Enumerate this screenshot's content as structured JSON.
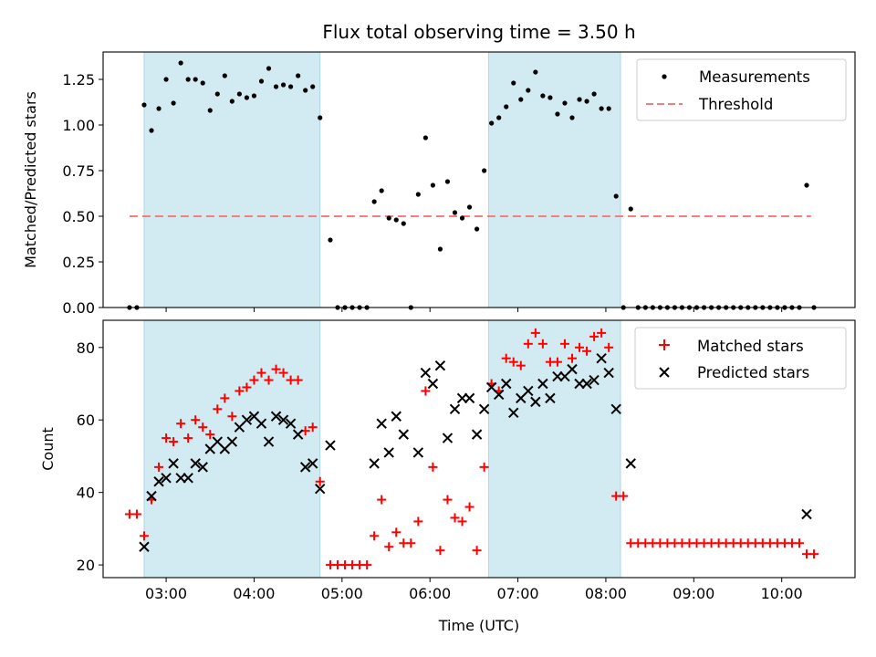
{
  "chart_data": [
    {
      "type": "scatter",
      "title": "Flux total observing time = 3.50 h",
      "xlabel": "",
      "ylabel": "Matched/Predicted stars",
      "xlim": [
        "02:17",
        "10:50"
      ],
      "ylim": [
        0,
        1.4
      ],
      "yticks": [
        "0.00",
        "0.25",
        "0.50",
        "0.75",
        "1.00",
        "1.25"
      ],
      "shaded_intervals": [
        [
          "02:45",
          "04:45"
        ],
        [
          "06:40",
          "08:10"
        ]
      ],
      "shade_color": "#add8e6",
      "legend_position": "top-right",
      "series": [
        {
          "name": "Measurements",
          "marker": "dot",
          "color": "#000000",
          "points": [
            [
              "02:35",
              0
            ],
            [
              "02:40",
              0
            ],
            [
              "02:45",
              1.11
            ],
            [
              "02:50",
              0.97
            ],
            [
              "02:55",
              1.09
            ],
            [
              "03:00",
              1.25
            ],
            [
              "03:05",
              1.12
            ],
            [
              "03:10",
              1.34
            ],
            [
              "03:15",
              1.25
            ],
            [
              "03:20",
              1.25
            ],
            [
              "03:25",
              1.23
            ],
            [
              "03:30",
              1.08
            ],
            [
              "03:35",
              1.17
            ],
            [
              "03:40",
              1.27
            ],
            [
              "03:45",
              1.13
            ],
            [
              "03:50",
              1.17
            ],
            [
              "03:55",
              1.15
            ],
            [
              "04:00",
              1.16
            ],
            [
              "04:05",
              1.24
            ],
            [
              "04:10",
              1.31
            ],
            [
              "04:15",
              1.21
            ],
            [
              "04:20",
              1.22
            ],
            [
              "04:25",
              1.21
            ],
            [
              "04:30",
              1.27
            ],
            [
              "04:35",
              1.19
            ],
            [
              "04:40",
              1.21
            ],
            [
              "04:45",
              1.04
            ],
            [
              "04:52",
              0.37
            ],
            [
              "04:57",
              0
            ],
            [
              "05:02",
              0
            ],
            [
              "05:07",
              0
            ],
            [
              "05:12",
              0
            ],
            [
              "05:17",
              0
            ],
            [
              "05:22",
              0.58
            ],
            [
              "05:27",
              0.64
            ],
            [
              "05:32",
              0.49
            ],
            [
              "05:37",
              0.48
            ],
            [
              "05:42",
              0.46
            ],
            [
              "05:47",
              0
            ],
            [
              "05:52",
              0.62
            ],
            [
              "05:57",
              0.93
            ],
            [
              "06:02",
              0.67
            ],
            [
              "06:07",
              0.32
            ],
            [
              "06:12",
              0.69
            ],
            [
              "06:17",
              0.52
            ],
            [
              "06:22",
              0.49
            ],
            [
              "06:27",
              0.55
            ],
            [
              "06:32",
              0.43
            ],
            [
              "06:37",
              0.75
            ],
            [
              "06:42",
              1.01
            ],
            [
              "06:47",
              1.04
            ],
            [
              "06:52",
              1.1
            ],
            [
              "06:57",
              1.23
            ],
            [
              "07:02",
              1.14
            ],
            [
              "07:07",
              1.19
            ],
            [
              "07:12",
              1.29
            ],
            [
              "07:17",
              1.16
            ],
            [
              "07:22",
              1.15
            ],
            [
              "07:27",
              1.06
            ],
            [
              "07:32",
              1.12
            ],
            [
              "07:37",
              1.04
            ],
            [
              "07:42",
              1.14
            ],
            [
              "07:47",
              1.13
            ],
            [
              "07:52",
              1.17
            ],
            [
              "07:57",
              1.09
            ],
            [
              "08:02",
              1.09
            ],
            [
              "08:07",
              0.61
            ],
            [
              "08:12",
              0
            ],
            [
              "08:17",
              0.54
            ],
            [
              "08:22",
              0
            ],
            [
              "08:27",
              0
            ],
            [
              "08:32",
              0
            ],
            [
              "08:37",
              0
            ],
            [
              "08:42",
              0
            ],
            [
              "08:47",
              0
            ],
            [
              "08:52",
              0
            ],
            [
              "08:57",
              0
            ],
            [
              "09:02",
              0
            ],
            [
              "09:07",
              0
            ],
            [
              "09:12",
              0
            ],
            [
              "09:17",
              0
            ],
            [
              "09:22",
              0
            ],
            [
              "09:27",
              0
            ],
            [
              "09:32",
              0
            ],
            [
              "09:37",
              0
            ],
            [
              "09:42",
              0
            ],
            [
              "09:47",
              0
            ],
            [
              "09:52",
              0
            ],
            [
              "09:57",
              0
            ],
            [
              "10:02",
              0
            ],
            [
              "10:07",
              0
            ],
            [
              "10:12",
              0
            ],
            [
              "10:17",
              0.67
            ],
            [
              "10:22",
              0
            ]
          ]
        },
        {
          "name": "Threshold",
          "marker": "dashed-line",
          "color": "#f08080",
          "points": [
            [
              "02:35",
              0.5
            ],
            [
              "10:20",
              0.5
            ]
          ]
        }
      ]
    },
    {
      "type": "scatter",
      "title": "",
      "xlabel": "Time (UTC)",
      "ylabel": "Count",
      "xlim": [
        "02:17",
        "10:50"
      ],
      "ylim": [
        16.5,
        87.5
      ],
      "yticks": [
        "20",
        "40",
        "60",
        "80"
      ],
      "xticks": [
        "03:00",
        "04:00",
        "05:00",
        "06:00",
        "07:00",
        "08:00",
        "09:00",
        "10:00"
      ],
      "shaded_intervals": [
        [
          "02:45",
          "04:45"
        ],
        [
          "06:40",
          "08:10"
        ]
      ],
      "shade_color": "#add8e6",
      "legend_position": "top-right",
      "series": [
        {
          "name": "Matched stars",
          "marker": "plus",
          "color": "#ff0000",
          "points": [
            [
              "02:35",
              34
            ],
            [
              "02:40",
              34
            ],
            [
              "02:45",
              28
            ],
            [
              "02:50",
              38
            ],
            [
              "02:55",
              47
            ],
            [
              "03:00",
              55
            ],
            [
              "03:05",
              54
            ],
            [
              "03:10",
              59
            ],
            [
              "03:15",
              55
            ],
            [
              "03:20",
              60
            ],
            [
              "03:25",
              58
            ],
            [
              "03:30",
              56
            ],
            [
              "03:35",
              63
            ],
            [
              "03:40",
              66
            ],
            [
              "03:45",
              61
            ],
            [
              "03:50",
              68
            ],
            [
              "03:55",
              69
            ],
            [
              "04:00",
              71
            ],
            [
              "04:05",
              73
            ],
            [
              "04:10",
              71
            ],
            [
              "04:15",
              74
            ],
            [
              "04:20",
              73
            ],
            [
              "04:25",
              71
            ],
            [
              "04:30",
              71
            ],
            [
              "04:35",
              57
            ],
            [
              "04:40",
              58
            ],
            [
              "04:45",
              43
            ],
            [
              "04:52",
              20
            ],
            [
              "04:57",
              20
            ],
            [
              "05:02",
              20
            ],
            [
              "05:07",
              20
            ],
            [
              "05:12",
              20
            ],
            [
              "05:17",
              20
            ],
            [
              "05:22",
              28
            ],
            [
              "05:27",
              38
            ],
            [
              "05:32",
              25
            ],
            [
              "05:37",
              29
            ],
            [
              "05:42",
              26
            ],
            [
              "05:47",
              26
            ],
            [
              "05:52",
              32
            ],
            [
              "05:57",
              68
            ],
            [
              "06:02",
              47
            ],
            [
              "06:07",
              24
            ],
            [
              "06:12",
              38
            ],
            [
              "06:17",
              33
            ],
            [
              "06:22",
              32
            ],
            [
              "06:27",
              36
            ],
            [
              "06:32",
              24
            ],
            [
              "06:37",
              47
            ],
            [
              "06:42",
              70
            ],
            [
              "06:47",
              68
            ],
            [
              "06:52",
              77
            ],
            [
              "06:57",
              76
            ],
            [
              "07:02",
              75
            ],
            [
              "07:07",
              81
            ],
            [
              "07:12",
              84
            ],
            [
              "07:17",
              81
            ],
            [
              "07:22",
              76
            ],
            [
              "07:27",
              76
            ],
            [
              "07:32",
              81
            ],
            [
              "07:37",
              77
            ],
            [
              "07:42",
              80
            ],
            [
              "07:47",
              79
            ],
            [
              "07:52",
              83
            ],
            [
              "07:57",
              84
            ],
            [
              "08:02",
              80
            ],
            [
              "08:07",
              39
            ],
            [
              "08:12",
              39
            ],
            [
              "08:17",
              26
            ],
            [
              "08:22",
              26
            ],
            [
              "08:27",
              26
            ],
            [
              "08:32",
              26
            ],
            [
              "08:37",
              26
            ],
            [
              "08:42",
              26
            ],
            [
              "08:47",
              26
            ],
            [
              "08:52",
              26
            ],
            [
              "08:57",
              26
            ],
            [
              "09:02",
              26
            ],
            [
              "09:07",
              26
            ],
            [
              "09:12",
              26
            ],
            [
              "09:17",
              26
            ],
            [
              "09:22",
              26
            ],
            [
              "09:27",
              26
            ],
            [
              "09:32",
              26
            ],
            [
              "09:37",
              26
            ],
            [
              "09:42",
              26
            ],
            [
              "09:47",
              26
            ],
            [
              "09:52",
              26
            ],
            [
              "09:57",
              26
            ],
            [
              "10:02",
              26
            ],
            [
              "10:07",
              26
            ],
            [
              "10:12",
              26
            ],
            [
              "10:17",
              23
            ],
            [
              "10:22",
              23
            ]
          ]
        },
        {
          "name": "Predicted stars",
          "marker": "x",
          "color": "#000000",
          "points": [
            [
              "02:45",
              25
            ],
            [
              "02:50",
              39
            ],
            [
              "02:55",
              43
            ],
            [
              "03:00",
              44
            ],
            [
              "03:05",
              48
            ],
            [
              "03:10",
              44
            ],
            [
              "03:15",
              44
            ],
            [
              "03:20",
              48
            ],
            [
              "03:25",
              47
            ],
            [
              "03:30",
              52
            ],
            [
              "03:35",
              54
            ],
            [
              "03:40",
              52
            ],
            [
              "03:45",
              54
            ],
            [
              "03:50",
              58
            ],
            [
              "03:55",
              60
            ],
            [
              "04:00",
              61
            ],
            [
              "04:05",
              59
            ],
            [
              "04:10",
              54
            ],
            [
              "04:15",
              61
            ],
            [
              "04:20",
              60
            ],
            [
              "04:25",
              59
            ],
            [
              "04:30",
              56
            ],
            [
              "04:35",
              47
            ],
            [
              "04:40",
              48
            ],
            [
              "04:45",
              41
            ],
            [
              "04:52",
              53
            ],
            [
              "05:22",
              48
            ],
            [
              "05:27",
              59
            ],
            [
              "05:32",
              51
            ],
            [
              "05:37",
              61
            ],
            [
              "05:42",
              56
            ],
            [
              "05:52",
              51
            ],
            [
              "05:57",
              73
            ],
            [
              "06:02",
              70
            ],
            [
              "06:07",
              75
            ],
            [
              "06:12",
              55
            ],
            [
              "06:17",
              63
            ],
            [
              "06:22",
              66
            ],
            [
              "06:27",
              66
            ],
            [
              "06:32",
              56
            ],
            [
              "06:37",
              63
            ],
            [
              "06:42",
              69
            ],
            [
              "06:47",
              67
            ],
            [
              "06:52",
              70
            ],
            [
              "06:57",
              62
            ],
            [
              "07:02",
              66
            ],
            [
              "07:07",
              68
            ],
            [
              "07:12",
              65
            ],
            [
              "07:17",
              70
            ],
            [
              "07:22",
              66
            ],
            [
              "07:27",
              72
            ],
            [
              "07:32",
              72
            ],
            [
              "07:37",
              74
            ],
            [
              "07:42",
              70
            ],
            [
              "07:47",
              70
            ],
            [
              "07:52",
              71
            ],
            [
              "07:57",
              77
            ],
            [
              "08:02",
              73
            ],
            [
              "08:07",
              63
            ],
            [
              "08:17",
              48
            ],
            [
              "10:17",
              34
            ]
          ]
        }
      ]
    }
  ]
}
